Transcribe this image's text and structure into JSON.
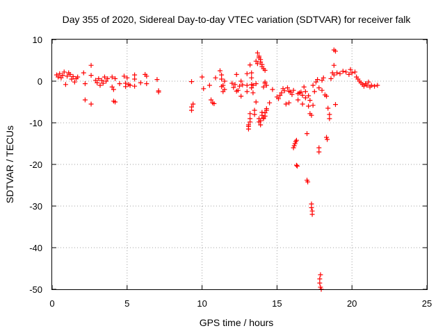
{
  "chart_data": {
    "type": "scatter",
    "title": "Day 355 of 2020, Sidereal Day-to-day VTEC variation (SDTVAR) for receiver falk",
    "xlabel": "GPS time / hours",
    "ylabel": "SDTVAR / TECUs",
    "xlim": [
      0,
      25
    ],
    "ylim": [
      -50,
      10
    ],
    "xticks": [
      "0",
      "5",
      "10",
      "15",
      "20",
      "25"
    ],
    "yticks": [
      "10",
      "0",
      "-10",
      "-20",
      "-30",
      "-40",
      "-50"
    ],
    "grid": true,
    "marker": "plus",
    "color": "#ff0000",
    "series": [
      {
        "name": "SDTVAR",
        "points": [
          [
            0.3,
            1.5
          ],
          [
            0.4,
            1.0
          ],
          [
            0.5,
            1.8
          ],
          [
            0.6,
            0.8
          ],
          [
            0.7,
            1.4
          ],
          [
            0.8,
            2.2
          ],
          [
            0.9,
            -0.8
          ],
          [
            1.0,
            1.2
          ],
          [
            1.1,
            2.0
          ],
          [
            1.2,
            1.6
          ],
          [
            1.3,
            0.5
          ],
          [
            1.4,
            1.1
          ],
          [
            1.5,
            -0.2
          ],
          [
            1.6,
            0.6
          ],
          [
            1.7,
            1.0
          ],
          [
            2.1,
            2.0
          ],
          [
            2.2,
            -0.6
          ],
          [
            2.2,
            -4.5
          ],
          [
            2.6,
            3.8
          ],
          [
            2.6,
            1.4
          ],
          [
            2.6,
            -5.5
          ],
          [
            2.9,
            0.2
          ],
          [
            3.0,
            -0.4
          ],
          [
            3.1,
            0.6
          ],
          [
            3.2,
            -1.0
          ],
          [
            3.3,
            0.2
          ],
          [
            3.4,
            -0.5
          ],
          [
            3.5,
            1.0
          ],
          [
            3.6,
            0.0
          ],
          [
            3.7,
            0.6
          ],
          [
            4.0,
            1.0
          ],
          [
            4.0,
            -1.4
          ],
          [
            4.1,
            -2.0
          ],
          [
            4.1,
            -4.8
          ],
          [
            4.2,
            0.6
          ],
          [
            4.2,
            -5.0
          ],
          [
            4.5,
            -0.6
          ],
          [
            4.8,
            1.2
          ],
          [
            4.9,
            -0.5
          ],
          [
            4.9,
            -1.3
          ],
          [
            5.0,
            0.8
          ],
          [
            5.1,
            -0.8
          ],
          [
            5.2,
            -1.0
          ],
          [
            5.5,
            1.5
          ],
          [
            5.5,
            0.5
          ],
          [
            5.5,
            -1.2
          ],
          [
            5.9,
            -0.4
          ],
          [
            6.2,
            1.6
          ],
          [
            6.3,
            -0.6
          ],
          [
            6.3,
            1.2
          ],
          [
            7.0,
            0.4
          ],
          [
            7.1,
            -2.3
          ],
          [
            7.1,
            -2.6
          ],
          [
            9.3,
            -0.1
          ],
          [
            9.3,
            -6.2
          ],
          [
            9.3,
            -7.0
          ],
          [
            9.4,
            -5.5
          ],
          [
            10.0,
            1.0
          ],
          [
            10.1,
            -1.8
          ],
          [
            10.5,
            -1.0
          ],
          [
            10.6,
            -4.5
          ],
          [
            10.7,
            -5.2
          ],
          [
            10.8,
            -5.4
          ],
          [
            10.9,
            0.8
          ],
          [
            11.2,
            2.5
          ],
          [
            11.3,
            1.5
          ],
          [
            11.3,
            0.5
          ],
          [
            11.3,
            -1.3
          ],
          [
            11.4,
            -2.5
          ],
          [
            11.4,
            -1.0
          ],
          [
            11.5,
            0.0
          ],
          [
            11.5,
            -2.0
          ],
          [
            12.0,
            -0.5
          ],
          [
            12.1,
            -1.5
          ],
          [
            12.2,
            -0.8
          ],
          [
            12.3,
            -2.4
          ],
          [
            12.3,
            1.6
          ],
          [
            12.4,
            -2.2
          ],
          [
            12.5,
            -1.2
          ],
          [
            12.6,
            -3.6
          ],
          [
            12.6,
            0.0
          ],
          [
            12.7,
            -0.9
          ],
          [
            13.0,
            1.8
          ],
          [
            13.0,
            -1.0
          ],
          [
            13.0,
            -2.5
          ],
          [
            13.1,
            -10.9
          ],
          [
            13.1,
            -11.5
          ],
          [
            13.1,
            -10.5
          ],
          [
            13.2,
            -9.8
          ],
          [
            13.2,
            -9.0
          ],
          [
            13.2,
            -7.8
          ],
          [
            13.2,
            3.9
          ],
          [
            13.3,
            0.8
          ],
          [
            13.3,
            2.0
          ],
          [
            13.3,
            -1.6
          ],
          [
            13.3,
            -0.8
          ],
          [
            13.4,
            -2.8
          ],
          [
            13.4,
            -1.0
          ],
          [
            13.5,
            -8.0
          ],
          [
            13.5,
            -7.0
          ],
          [
            13.6,
            -5.0
          ],
          [
            13.6,
            4.8
          ],
          [
            13.7,
            4.2
          ],
          [
            13.7,
            6.8
          ],
          [
            13.8,
            6.0
          ],
          [
            13.8,
            5.6
          ],
          [
            13.9,
            5.2
          ],
          [
            13.9,
            4.6
          ],
          [
            14.0,
            4.0
          ],
          [
            14.0,
            3.5
          ],
          [
            14.1,
            3.0
          ],
          [
            14.2,
            2.6
          ],
          [
            14.2,
            -0.5
          ],
          [
            14.3,
            -1.0
          ],
          [
            13.8,
            -9.0
          ],
          [
            13.8,
            -9.8
          ],
          [
            13.9,
            -9.5
          ],
          [
            13.9,
            -10.5
          ],
          [
            14.0,
            -8.2
          ],
          [
            14.0,
            -7.5
          ],
          [
            14.1,
            -9.0
          ],
          [
            14.1,
            -8.8
          ],
          [
            14.2,
            -7.6
          ],
          [
            14.2,
            -8.4
          ],
          [
            14.3,
            -7.0
          ],
          [
            14.3,
            -6.6
          ],
          [
            14.2,
            -0.2
          ],
          [
            14.1,
            -1.4
          ],
          [
            13.6,
            -0.6
          ],
          [
            14.5,
            -5.2
          ],
          [
            14.7,
            -2.0
          ],
          [
            15.0,
            -3.8
          ],
          [
            15.1,
            -4.2
          ],
          [
            15.2,
            -3.4
          ],
          [
            15.3,
            -2.8
          ],
          [
            15.4,
            -1.8
          ],
          [
            15.5,
            -2.3
          ],
          [
            15.6,
            -5.5
          ],
          [
            15.7,
            -1.6
          ],
          [
            15.8,
            -5.2
          ],
          [
            15.8,
            -2.4
          ],
          [
            15.9,
            -2.6
          ],
          [
            16.0,
            -3.2
          ],
          [
            16.1,
            -2.2
          ],
          [
            16.1,
            -16.0
          ],
          [
            16.15,
            -15.5
          ],
          [
            16.2,
            -15.0
          ],
          [
            16.25,
            -14.5
          ],
          [
            16.3,
            -14.2
          ],
          [
            16.3,
            -20.2
          ],
          [
            16.35,
            -20.4
          ],
          [
            16.4,
            -3.0
          ],
          [
            16.4,
            -4.5
          ],
          [
            16.5,
            -2.8
          ],
          [
            16.6,
            -2.6
          ],
          [
            16.7,
            -3.4
          ],
          [
            16.7,
            -5.5
          ],
          [
            16.8,
            -1.4
          ],
          [
            16.9,
            -4.0
          ],
          [
            16.9,
            -2.5
          ],
          [
            17.0,
            -12.6
          ],
          [
            17.0,
            -23.8
          ],
          [
            17.05,
            -24.2
          ],
          [
            17.1,
            -3.5
          ],
          [
            17.1,
            -6.0
          ],
          [
            17.2,
            -4.6
          ],
          [
            17.2,
            -7.8
          ],
          [
            17.3,
            -8.2
          ],
          [
            17.3,
            -29.5
          ],
          [
            17.3,
            -30.4
          ],
          [
            17.35,
            -31.2
          ],
          [
            17.35,
            -32.0
          ],
          [
            17.4,
            -5.8
          ],
          [
            17.4,
            -1.0
          ],
          [
            17.5,
            -2.5
          ],
          [
            17.6,
            -0.2
          ],
          [
            17.7,
            0.4
          ],
          [
            17.8,
            -1.6
          ],
          [
            17.8,
            -16.0
          ],
          [
            17.8,
            -17.0
          ],
          [
            17.85,
            -47.5
          ],
          [
            17.85,
            -48.5
          ],
          [
            17.9,
            -49.5
          ],
          [
            17.9,
            -46.5
          ],
          [
            17.95,
            -50.0
          ],
          [
            18.0,
            -2.2
          ],
          [
            18.0,
            0.2
          ],
          [
            18.1,
            0.8
          ],
          [
            18.2,
            -3.3
          ],
          [
            18.3,
            -3.6
          ],
          [
            18.3,
            -13.5
          ],
          [
            18.35,
            -14.0
          ],
          [
            18.4,
            -6.5
          ],
          [
            18.5,
            -9.0
          ],
          [
            18.5,
            -8.0
          ],
          [
            18.6,
            0.6
          ],
          [
            18.7,
            2.0
          ],
          [
            18.8,
            1.5
          ],
          [
            18.8,
            3.8
          ],
          [
            18.8,
            7.5
          ],
          [
            18.9,
            -5.6
          ],
          [
            18.9,
            7.2
          ],
          [
            19.0,
            2.0
          ],
          [
            19.2,
            1.8
          ],
          [
            19.4,
            2.4
          ],
          [
            19.6,
            2.2
          ],
          [
            19.8,
            1.6
          ],
          [
            19.9,
            2.8
          ],
          [
            20.0,
            2.0
          ],
          [
            20.2,
            2.2
          ],
          [
            20.3,
            1.0
          ],
          [
            20.4,
            0.5
          ],
          [
            20.5,
            0.0
          ],
          [
            20.6,
            -0.4
          ],
          [
            20.7,
            -0.8
          ],
          [
            20.8,
            -1.2
          ],
          [
            20.9,
            -0.6
          ],
          [
            21.0,
            -1.0
          ],
          [
            21.1,
            -0.2
          ],
          [
            21.2,
            -1.4
          ],
          [
            21.3,
            -1.0
          ],
          [
            21.5,
            -1.2
          ],
          [
            21.7,
            -1.0
          ]
        ]
      }
    ]
  }
}
